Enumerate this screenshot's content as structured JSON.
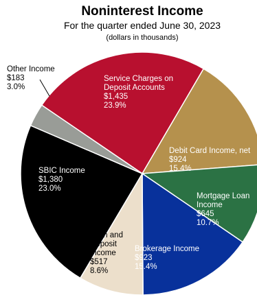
{
  "chart_data": {
    "type": "pie",
    "title": "Noninterest Income",
    "subtitle": "For the quarter ended June 30, 2023",
    "unit_note": "(dollars in thousands)",
    "slices": [
      {
        "lines": [
          "Service Charges on",
          "Deposit Accounts"
        ],
        "value_label": "$1,435",
        "value": 1435,
        "percent_label": "23.9%",
        "percent": 23.9,
        "color": "#b8102f",
        "text_color": "#ffffff"
      },
      {
        "lines": [
          "Debit Card Income, net"
        ],
        "value_label": "$924",
        "value": 924,
        "percent_label": "15.4%",
        "percent": 15.4,
        "color": "#b5914d",
        "text_color": "#ffffff"
      },
      {
        "lines": [
          "Mortgage Loan",
          "Income"
        ],
        "value_label": "$645",
        "value": 645,
        "percent_label": "10.7%",
        "percent": 10.7,
        "color": "#2b7244",
        "text_color": "#ffffff"
      },
      {
        "lines": [
          "Brokerage Income"
        ],
        "value_label": "$923",
        "value": 923,
        "percent_label": "15.4%",
        "percent": 15.4,
        "color": "#08319b",
        "text_color": "#ffffff"
      },
      {
        "lines": [
          "Loan and",
          "Deposit",
          "Income"
        ],
        "value_label": "$517",
        "value": 517,
        "percent_label": "8.6%",
        "percent": 8.6,
        "color": "#ecdfcb",
        "text_color": "#000000"
      },
      {
        "lines": [
          "SBIC Income"
        ],
        "value_label": "$1,380",
        "value": 1380,
        "percent_label": "23.0%",
        "percent": 23.0,
        "color": "#000000",
        "text_color": "#ffffff"
      },
      {
        "lines": [
          "Other Income"
        ],
        "value_label": "$183",
        "value": 183,
        "percent_label": "3.0%",
        "percent": 3.0,
        "color": "#999c97",
        "text_color": "#000000"
      }
    ]
  }
}
